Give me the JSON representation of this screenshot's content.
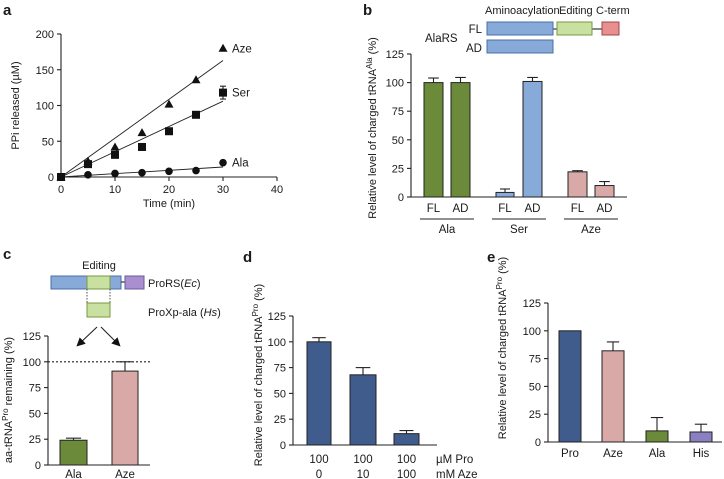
{
  "chart_data": [
    {
      "panel_label": "a",
      "type": "scatter",
      "xlabel": "Time (min)",
      "ylabel": "PPi released (µM)",
      "xlim": [
        0,
        40
      ],
      "ylim": [
        0,
        200
      ],
      "xticks": [
        0,
        10,
        20,
        30,
        40
      ],
      "yticks": [
        0,
        50,
        100,
        150,
        200
      ],
      "grid": false,
      "series": [
        {
          "name": "Aze",
          "marker": "triangle",
          "x": [
            0,
            5,
            10,
            15,
            20,
            25,
            30
          ],
          "y": [
            0,
            22,
            42,
            62,
            102,
            136,
            180
          ],
          "error": [
            0,
            0,
            0,
            0,
            0,
            0,
            0
          ],
          "fit": [
            [
              0,
              0
            ],
            [
              30,
              163
            ]
          ]
        },
        {
          "name": "Ser",
          "marker": "square",
          "x": [
            0,
            5,
            10,
            15,
            20,
            25,
            30
          ],
          "y": [
            0,
            18,
            31,
            42,
            64,
            87,
            118
          ],
          "error": [
            0,
            0,
            0,
            0,
            0,
            4,
            9
          ],
          "fit": [
            [
              0,
              0
            ],
            [
              30,
              106
            ]
          ]
        },
        {
          "name": "Ala",
          "marker": "circle",
          "x": [
            0,
            5,
            10,
            15,
            20,
            25,
            30
          ],
          "y": [
            0,
            3,
            5,
            6,
            8,
            9,
            20
          ],
          "error": [
            0,
            0,
            0,
            0,
            0,
            0,
            0
          ],
          "fit": [
            [
              0,
              0
            ],
            [
              30,
              14
            ]
          ]
        }
      ]
    },
    {
      "panel_label": "b",
      "type": "bar",
      "ylabel_parts": [
        "Relative level of charged tRNA",
        "Ala",
        " (%)"
      ],
      "ylim": [
        0,
        125
      ],
      "yticks": [
        0,
        25,
        50,
        75,
        100,
        125
      ],
      "groups": [
        "Ala",
        "Ser",
        "Aze"
      ],
      "bars": [
        {
          "group": "Ala",
          "label": "FL",
          "value": 100,
          "error": 4,
          "color": "#6b8a3a"
        },
        {
          "group": "Ala",
          "label": "AD",
          "value": 100,
          "error": 4.5,
          "color": "#6b8a3a"
        },
        {
          "group": "Ser",
          "label": "FL",
          "value": 4,
          "error": 3,
          "color": "#88aad8"
        },
        {
          "group": "Ser",
          "label": "AD",
          "value": 101,
          "error": 3.5,
          "color": "#88aad8"
        },
        {
          "group": "Aze",
          "label": "FL",
          "value": 22,
          "error": 1,
          "color": "#d9a9a8"
        },
        {
          "group": "Aze",
          "label": "AD",
          "value": 10,
          "error": 3.5,
          "color": "#d9a9a8"
        }
      ],
      "diagram": {
        "protein": "AlaRS",
        "rows": [
          "FL",
          "AD"
        ],
        "domains": [
          {
            "name": "Aminoacylation",
            "color": "#88aad8"
          },
          {
            "name": "Editing",
            "color": "#c8e0a0"
          },
          {
            "name": "C-term",
            "color": "#e89090"
          }
        ]
      }
    },
    {
      "panel_label": "c",
      "type": "bar",
      "ylabel_parts": [
        "aa-tRNA",
        "Pro",
        " remaining (%)"
      ],
      "ylim": [
        0,
        125
      ],
      "yticks": [
        0,
        25,
        50,
        75,
        100,
        125
      ],
      "reference_line": 100,
      "bars": [
        {
          "label": "Ala",
          "value": 24,
          "error": 2,
          "color": "#6b8a3a"
        },
        {
          "label": "Aze",
          "value": 91,
          "error": 9,
          "color": "#d9a9a8"
        }
      ],
      "diagram": {
        "domain_label": "Editing",
        "enzyme1_parts": [
          "ProRS(",
          "Ec",
          ")"
        ],
        "enzyme2_parts": [
          "ProXp-ala (",
          "Hs",
          ")"
        ],
        "colors": {
          "body": "#88aad8",
          "editing": "#c8e0a0",
          "cterm": "#a98fd0"
        }
      }
    },
    {
      "panel_label": "d",
      "type": "bar",
      "ylabel_parts": [
        "Relative level of charged tRNA",
        "Pro",
        " (%)"
      ],
      "ylim": [
        0,
        125
      ],
      "yticks": [
        0,
        25,
        50,
        75,
        100,
        125
      ],
      "bars": [
        {
          "pro": 100,
          "aze": 0,
          "value": 100,
          "error": 4,
          "color": "#3f5c8c"
        },
        {
          "pro": 100,
          "aze": 10,
          "value": 68,
          "error": 7,
          "color": "#3f5c8c"
        },
        {
          "pro": 100,
          "aze": 100,
          "value": 11,
          "error": 3,
          "color": "#3f5c8c"
        }
      ],
      "row_units": [
        "µM  Pro",
        "mM  Aze"
      ]
    },
    {
      "panel_label": "e",
      "type": "bar",
      "ylabel_parts": [
        "Relative level of charged tRNA",
        "Pro",
        " (%)"
      ],
      "ylim": [
        0,
        125
      ],
      "yticks": [
        0,
        25,
        50,
        75,
        100,
        125
      ],
      "bars": [
        {
          "label": "Pro",
          "value": 100,
          "error": 0,
          "color": "#3f5c8c"
        },
        {
          "label": "Aze",
          "value": 82,
          "error": 8,
          "color": "#d9a9a8"
        },
        {
          "label": "Ala",
          "value": 10,
          "error": 12,
          "color": "#6b8a3a"
        },
        {
          "label": "His",
          "value": 9,
          "error": 7,
          "color": "#8a7fc0"
        }
      ]
    }
  ]
}
